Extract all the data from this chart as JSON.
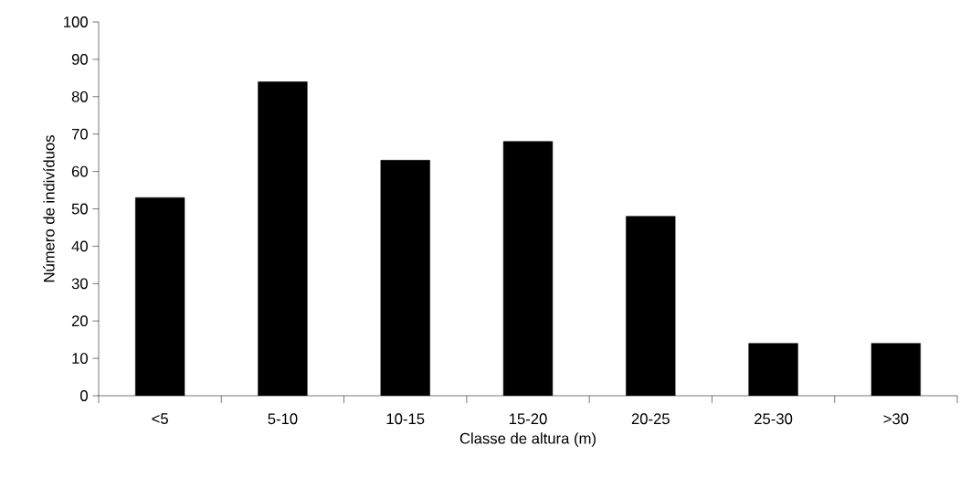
{
  "chart_data": {
    "type": "bar",
    "xlabel": "Classe de altura (m)",
    "ylabel": "Número de indivíduos",
    "categories": [
      "<5",
      "5-10",
      "10-15",
      "15-20",
      "20-25",
      "25-30",
      ">30"
    ],
    "values": [
      53,
      84,
      63,
      68,
      48,
      14,
      14
    ],
    "color": "#000000",
    "ylim": [
      0,
      100
    ],
    "yticks": [
      0,
      10,
      20,
      30,
      40,
      50,
      60,
      70,
      80,
      90,
      100
    ]
  }
}
